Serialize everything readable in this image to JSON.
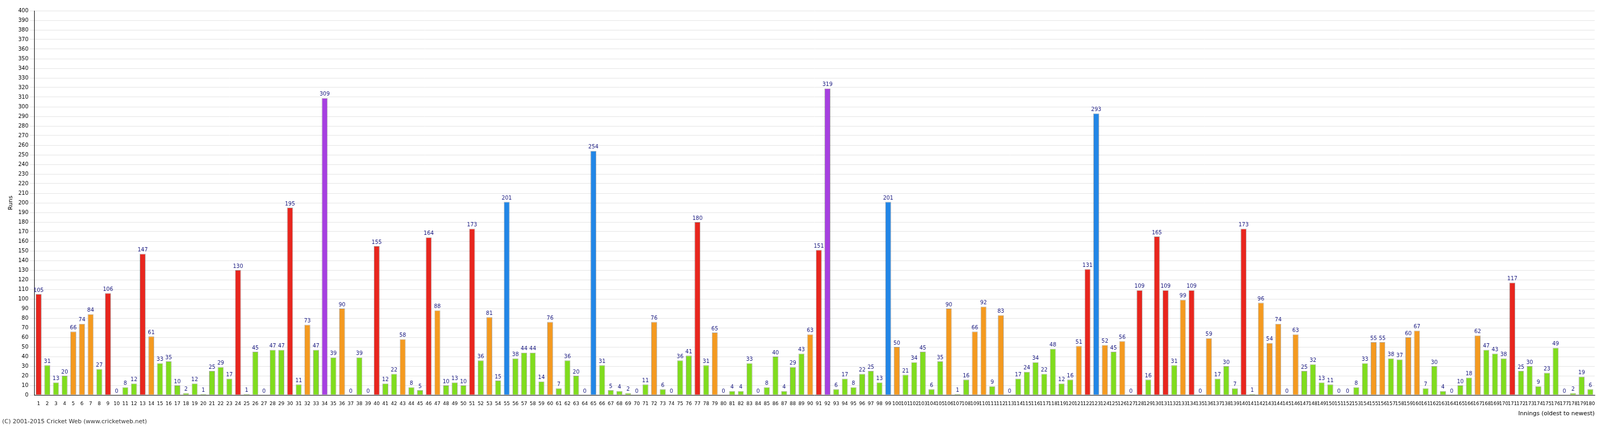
{
  "chart_data": {
    "type": "bar",
    "y_label": "Runs",
    "x_label": "Innings (oldest to newest)",
    "annotations": [
      "(C) 2001-2015 Cricket Web (www.cricketweb.net)"
    ],
    "categories": [
      "1",
      "2",
      "3",
      "4",
      "5",
      "6",
      "7",
      "8",
      "9",
      "10",
      "11",
      "12",
      "13",
      "14",
      "15",
      "16",
      "17",
      "18",
      "19",
      "20",
      "21",
      "22",
      "23",
      "24",
      "25",
      "26",
      "27",
      "28",
      "29",
      "30",
      "31",
      "32",
      "33",
      "34",
      "35",
      "36",
      "37",
      "38",
      "39",
      "40",
      "41",
      "42",
      "43",
      "44",
      "45",
      "46",
      "47",
      "48",
      "49",
      "50",
      "51",
      "52",
      "53",
      "54",
      "55",
      "56",
      "57",
      "58",
      "59",
      "60",
      "61",
      "62",
      "63",
      "64",
      "65",
      "66",
      "67",
      "68",
      "69",
      "70",
      "71",
      "72",
      "73",
      "74",
      "75",
      "76",
      "77",
      "78",
      "79",
      "80",
      "81",
      "82",
      "83",
      "84",
      "85",
      "86",
      "87",
      "88",
      "89",
      "90",
      "91",
      "92",
      "93",
      "94",
      "95",
      "96",
      "97",
      "98",
      "99",
      "100",
      "101",
      "102",
      "103",
      "104",
      "105",
      "106",
      "107",
      "108",
      "109",
      "110",
      "111",
      "112",
      "113",
      "114",
      "115",
      "116",
      "117",
      "118",
      "119",
      "120",
      "121",
      "122",
      "123",
      "124",
      "125",
      "126",
      "127",
      "128",
      "129",
      "130",
      "131",
      "132",
      "133",
      "134",
      "135",
      "136",
      "137",
      "138",
      "139",
      "140",
      "141",
      "142",
      "143",
      "144",
      "145",
      "146",
      "147",
      "148",
      "149",
      "150",
      "151",
      "152",
      "153",
      "154",
      "155",
      "156",
      "157",
      "158",
      "159",
      "160",
      "161",
      "162",
      "163",
      "164",
      "165",
      "166",
      "167",
      "168",
      "169",
      "170",
      "171",
      "172",
      "173",
      "174",
      "175",
      "176",
      "177",
      "178",
      "179",
      "180"
    ],
    "values": [
      105,
      31,
      13,
      20,
      66,
      74,
      84,
      27,
      106,
      0,
      8,
      12,
      147,
      61,
      33,
      35,
      10,
      2,
      12,
      1,
      25,
      29,
      17,
      130,
      1,
      45,
      0,
      47,
      47,
      195,
      11,
      73,
      47,
      309,
      39,
      90,
      0,
      39,
      0,
      155,
      12,
      22,
      58,
      8,
      5,
      164,
      88,
      10,
      13,
      10,
      173,
      36,
      81,
      15,
      201,
      38,
      44,
      44,
      14,
      76,
      7,
      36,
      20,
      0,
      254,
      31,
      5,
      4,
      2,
      0,
      11,
      76,
      6,
      0,
      36,
      41,
      180,
      31,
      65,
      0,
      4,
      4,
      33,
      0,
      8,
      40,
      4,
      29,
      43,
      63,
      151,
      319,
      6,
      17,
      8,
      22,
      25,
      13,
      201,
      50,
      21,
      34,
      45,
      6,
      35,
      90,
      1,
      16,
      66,
      92,
      9,
      83,
      0,
      17,
      24,
      34,
      22,
      48,
      12,
      16,
      51,
      131,
      293,
      52,
      45,
      56,
      0,
      109,
      16,
      165,
      109,
      31,
      99,
      109,
      0,
      59,
      17,
      30,
      7,
      173,
      1,
      96,
      54,
      74,
      0,
      63,
      25,
      32,
      13,
      11,
      0,
      0,
      8,
      33,
      55,
      55,
      38,
      37,
      60,
      67,
      7,
      30,
      4,
      0,
      10,
      18,
      62,
      47,
      43,
      38,
      117,
      25,
      30,
      9,
      23,
      49,
      0,
      2,
      19,
      6
    ],
    "colors": [
      "#e8261e",
      "#80dc1e",
      "#80dc1e",
      "#80dc1e",
      "#f49a20",
      "#f49a20",
      "#f49a20",
      "#80dc1e",
      "#e8261e",
      "#80dc1e",
      "#80dc1e",
      "#80dc1e",
      "#e8261e",
      "#f49a20",
      "#80dc1e",
      "#80dc1e",
      "#80dc1e",
      "#80dc1e",
      "#80dc1e",
      "#80dc1e",
      "#80dc1e",
      "#80dc1e",
      "#80dc1e",
      "#e8261e",
      "#80dc1e",
      "#80dc1e",
      "#80dc1e",
      "#80dc1e",
      "#80dc1e",
      "#e8261e",
      "#80dc1e",
      "#f49a20",
      "#80dc1e",
      "#a640e0",
      "#80dc1e",
      "#f49a20",
      "#80dc1e",
      "#80dc1e",
      "#80dc1e",
      "#e8261e",
      "#80dc1e",
      "#80dc1e",
      "#f49a20",
      "#80dc1e",
      "#80dc1e",
      "#e8261e",
      "#f49a20",
      "#80dc1e",
      "#80dc1e",
      "#80dc1e",
      "#e8261e",
      "#80dc1e",
      "#f49a20",
      "#80dc1e",
      "#2286e6",
      "#80dc1e",
      "#80dc1e",
      "#80dc1e",
      "#80dc1e",
      "#f49a20",
      "#80dc1e",
      "#80dc1e",
      "#80dc1e",
      "#80dc1e",
      "#2286e6",
      "#80dc1e",
      "#80dc1e",
      "#80dc1e",
      "#80dc1e",
      "#80dc1e",
      "#80dc1e",
      "#f49a20",
      "#80dc1e",
      "#80dc1e",
      "#80dc1e",
      "#80dc1e",
      "#e8261e",
      "#80dc1e",
      "#f49a20",
      "#80dc1e",
      "#80dc1e",
      "#80dc1e",
      "#80dc1e",
      "#80dc1e",
      "#80dc1e",
      "#80dc1e",
      "#80dc1e",
      "#80dc1e",
      "#80dc1e",
      "#f49a20",
      "#e8261e",
      "#a640e0",
      "#80dc1e",
      "#80dc1e",
      "#80dc1e",
      "#80dc1e",
      "#80dc1e",
      "#80dc1e",
      "#2286e6",
      "#f49a20",
      "#80dc1e",
      "#80dc1e",
      "#80dc1e",
      "#80dc1e",
      "#80dc1e",
      "#f49a20",
      "#80dc1e",
      "#80dc1e",
      "#f49a20",
      "#f49a20",
      "#80dc1e",
      "#f49a20",
      "#80dc1e",
      "#80dc1e",
      "#80dc1e",
      "#80dc1e",
      "#80dc1e",
      "#80dc1e",
      "#80dc1e",
      "#80dc1e",
      "#f49a20",
      "#e8261e",
      "#2286e6",
      "#f49a20",
      "#80dc1e",
      "#f49a20",
      "#80dc1e",
      "#e8261e",
      "#80dc1e",
      "#e8261e",
      "#e8261e",
      "#80dc1e",
      "#f49a20",
      "#e8261e",
      "#80dc1e",
      "#f49a20",
      "#80dc1e",
      "#80dc1e",
      "#80dc1e",
      "#e8261e",
      "#80dc1e",
      "#f49a20",
      "#f49a20",
      "#f49a20",
      "#80dc1e",
      "#f49a20",
      "#80dc1e",
      "#80dc1e",
      "#80dc1e",
      "#80dc1e",
      "#80dc1e",
      "#80dc1e",
      "#80dc1e",
      "#80dc1e",
      "#f49a20",
      "#f49a20",
      "#80dc1e",
      "#80dc1e",
      "#f49a20",
      "#f49a20",
      "#80dc1e",
      "#80dc1e",
      "#80dc1e",
      "#80dc1e",
      "#80dc1e",
      "#80dc1e",
      "#f49a20",
      "#80dc1e",
      "#80dc1e",
      "#80dc1e",
      "#e8261e",
      "#80dc1e",
      "#80dc1e",
      "#80dc1e",
      "#80dc1e",
      "#80dc1e",
      "#80dc1e",
      "#80dc1e",
      "#80dc1e",
      "#80dc1e"
    ],
    "ylim": [
      0,
      400
    ],
    "yticks": [
      0,
      10,
      20,
      30,
      40,
      50,
      60,
      70,
      80,
      90,
      100,
      110,
      120,
      130,
      140,
      150,
      160,
      170,
      180,
      190,
      200,
      210,
      220,
      230,
      240,
      250,
      260,
      270,
      280,
      290,
      300,
      310,
      320,
      330,
      340,
      350,
      360,
      370,
      380,
      390,
      400
    ],
    "grid": true,
    "data_labels": true
  }
}
